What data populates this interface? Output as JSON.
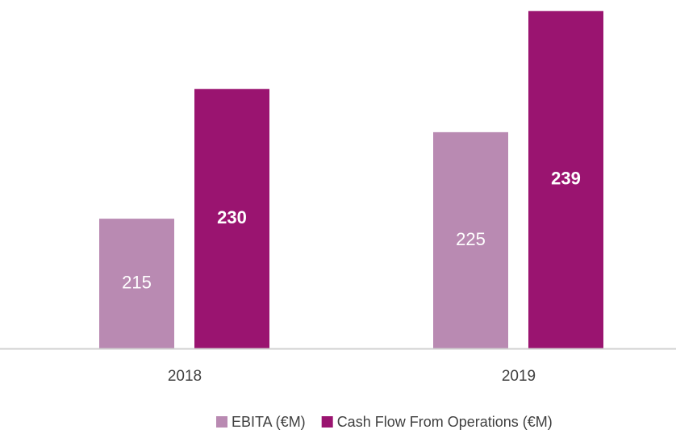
{
  "chart_data": {
    "type": "bar",
    "categories": [
      "2018",
      "2019"
    ],
    "series": [
      {
        "name": "EBITA (€M)",
        "color": "#b98ab2",
        "values": [
          215,
          225
        ]
      },
      {
        "name": "Cash Flow From Operations (€M)",
        "color": "#9a1470",
        "values": [
          230,
          239
        ]
      }
    ],
    "ylim": [
      200,
      240
    ],
    "legend": "bottom"
  }
}
